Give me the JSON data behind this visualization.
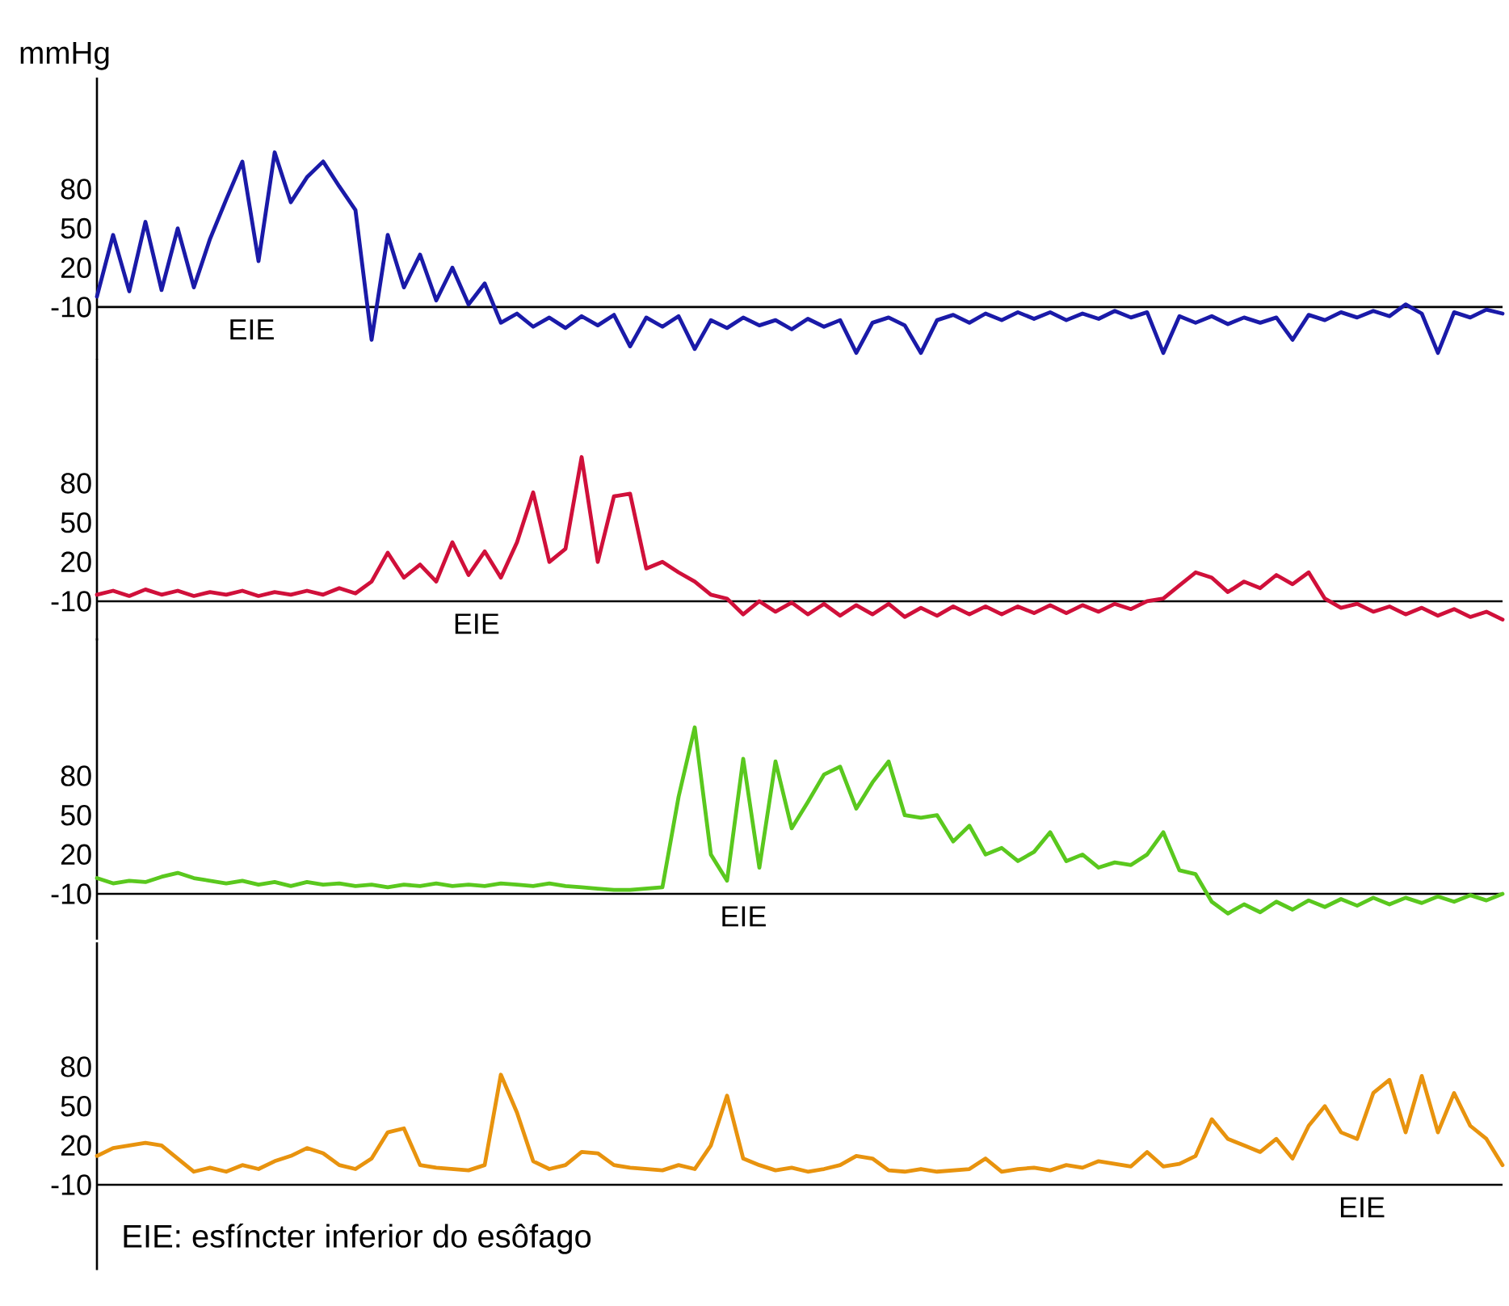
{
  "chart_data": [
    {
      "type": "line",
      "ylabel": "mmHg",
      "color": "#1a1aa8",
      "ylim": [
        -50,
        165
      ],
      "yticks": [
        -10,
        20,
        50,
        80
      ],
      "categories": [
        null,
        null,
        null,
        null,
        null,
        null,
        null,
        null,
        null,
        null,
        null,
        null,
        null,
        null,
        null,
        null,
        null,
        null,
        null,
        null,
        null,
        null,
        null,
        null,
        null,
        null,
        null,
        null,
        null,
        null,
        null,
        null,
        null,
        null,
        null,
        null,
        null,
        null,
        null,
        null,
        null,
        null,
        null,
        null,
        null,
        null,
        null,
        null,
        null,
        null,
        null,
        null,
        null,
        null,
        null,
        null,
        null,
        null,
        null,
        null,
        null,
        null,
        null,
        null,
        null,
        null,
        null,
        null,
        null,
        null,
        null,
        null,
        null,
        null,
        null,
        null,
        null,
        null,
        null,
        null,
        null,
        null,
        null,
        null,
        null,
        null,
        null,
        null
      ],
      "values": [
        -2,
        45,
        2,
        55,
        3,
        50,
        5,
        42,
        72,
        101,
        25,
        108,
        70,
        89,
        101,
        82,
        64,
        -35,
        45,
        5,
        30,
        -5,
        20,
        -8,
        8,
        -22,
        -15,
        -25,
        -18,
        -26,
        -17,
        -24,
        -16,
        -40,
        -18,
        -25,
        -17,
        -42,
        -20,
        -26,
        -18,
        -24,
        -20,
        -27,
        -19,
        -25,
        -20,
        -45,
        -22,
        -18,
        -24,
        -45,
        -20,
        -16,
        -22,
        -15,
        -20,
        -14,
        -19,
        -14,
        -20,
        -15,
        -19,
        -13,
        -18,
        -14,
        -45,
        -17,
        -22,
        -17,
        -23,
        -18,
        -22,
        -18,
        -35,
        -16,
        -20,
        -14,
        -18,
        -13,
        -17,
        -8,
        -15,
        -45,
        -14,
        -18,
        -12,
        -15
      ],
      "ref_lines": [
        {
          "axis": "y",
          "value": -10
        }
      ],
      "annotations": [
        "EIE"
      ]
    },
    {
      "type": "line",
      "color": "#d0103a",
      "ylim": [
        -40,
        175
      ],
      "yticks": [
        -10,
        20,
        50,
        80
      ],
      "categories": [
        null,
        null,
        null,
        null,
        null,
        null,
        null,
        null,
        null,
        null,
        null,
        null,
        null,
        null,
        null,
        null,
        null,
        null,
        null,
        null,
        null,
        null,
        null,
        null,
        null,
        null,
        null,
        null,
        null,
        null,
        null,
        null,
        null,
        null,
        null,
        null,
        null,
        null,
        null,
        null,
        null,
        null,
        null,
        null,
        null,
        null,
        null,
        null,
        null,
        null,
        null,
        null,
        null,
        null,
        null,
        null,
        null,
        null,
        null,
        null,
        null,
        null,
        null,
        null,
        null,
        null,
        null,
        null,
        null,
        null,
        null,
        null,
        null,
        null,
        null,
        null,
        null,
        null,
        null,
        null,
        null,
        null,
        null,
        null,
        null,
        null,
        null,
        null
      ],
      "values": [
        -5,
        -2,
        -6,
        -1,
        -5,
        -2,
        -6,
        -3,
        -5,
        -2,
        -6,
        -3,
        -5,
        -2,
        -5,
        0,
        -4,
        5,
        27,
        8,
        18,
        5,
        35,
        10,
        28,
        8,
        35,
        73,
        20,
        30,
        100,
        20,
        70,
        72,
        15,
        20,
        12,
        5,
        -5,
        -8,
        -20,
        -10,
        -18,
        -11,
        -20,
        -12,
        -21,
        -13,
        -20,
        -12,
        -22,
        -15,
        -21,
        -14,
        -20,
        -14,
        -20,
        -14,
        -19,
        -13,
        -19,
        -13,
        -18,
        -12,
        -16,
        -10,
        -8,
        2,
        12,
        8,
        -3,
        5,
        0,
        10,
        3,
        12,
        -8,
        -15,
        -12,
        -18,
        -14,
        -20,
        -15,
        -21,
        -16,
        -22,
        -18,
        -24
      ],
      "ref_lines": [
        {
          "axis": "y",
          "value": -10
        }
      ],
      "annotations": [
        "EIE"
      ]
    },
    {
      "type": "line",
      "color": "#5ac81e",
      "ylim": [
        -45,
        185
      ],
      "yticks": [
        -10,
        20,
        50,
        80
      ],
      "categories": [
        null,
        null,
        null,
        null,
        null,
        null,
        null,
        null,
        null,
        null,
        null,
        null,
        null,
        null,
        null,
        null,
        null,
        null,
        null,
        null,
        null,
        null,
        null,
        null,
        null,
        null,
        null,
        null,
        null,
        null,
        null,
        null,
        null,
        null,
        null,
        null,
        null,
        null,
        null,
        null,
        null,
        null,
        null,
        null,
        null,
        null,
        null,
        null,
        null,
        null,
        null,
        null,
        null,
        null,
        null,
        null,
        null,
        null,
        null,
        null,
        null,
        null,
        null,
        null,
        null,
        null,
        null,
        null,
        null,
        null,
        null,
        null,
        null,
        null,
        null,
        null,
        null,
        null,
        null,
        null,
        null,
        null,
        null,
        null,
        null,
        null,
        null,
        null
      ],
      "values": [
        2,
        -2,
        0,
        -1,
        3,
        6,
        2,
        0,
        -2,
        0,
        -3,
        -1,
        -4,
        -1,
        -3,
        -2,
        -4,
        -3,
        -5,
        -3,
        -4,
        -2,
        -4,
        -3,
        -4,
        -2,
        -3,
        -4,
        -2,
        -4,
        -5,
        -6,
        -7,
        -7,
        -6,
        -5,
        64,
        117,
        20,
        0,
        93,
        10,
        91,
        40,
        60,
        81,
        87,
        55,
        75,
        91,
        50,
        48,
        50,
        30,
        42,
        20,
        25,
        15,
        22,
        37,
        15,
        20,
        10,
        14,
        12,
        20,
        37,
        8,
        5,
        -16,
        -25,
        -18,
        -24,
        -16,
        -22,
        -15,
        -20,
        -14,
        -19,
        -13,
        -18,
        -13,
        -17,
        -12,
        -16,
        -11,
        -15,
        -10
      ],
      "ref_lines": [
        {
          "axis": "y",
          "value": -10
        }
      ],
      "annotations": [
        "EIE"
      ]
    },
    {
      "type": "line",
      "color": "#e8930e",
      "ylim": [
        -75,
        175
      ],
      "yticks": [
        -10,
        20,
        50,
        80
      ],
      "categories": [
        null,
        null,
        null,
        null,
        null,
        null,
        null,
        null,
        null,
        null,
        null,
        null,
        null,
        null,
        null,
        null,
        null,
        null,
        null,
        null,
        null,
        null,
        null,
        null,
        null,
        null,
        null,
        null,
        null,
        null,
        null,
        null,
        null,
        null,
        null,
        null,
        null,
        null,
        null,
        null,
        null,
        null,
        null,
        null,
        null,
        null,
        null,
        null,
        null,
        null,
        null,
        null,
        null,
        null,
        null,
        null,
        null,
        null,
        null,
        null,
        null,
        null,
        null,
        null,
        null,
        null,
        null,
        null,
        null,
        null,
        null,
        null,
        null,
        null,
        null,
        null,
        null,
        null,
        null,
        null,
        null,
        null,
        null,
        null,
        null,
        null,
        null,
        null
      ],
      "values": [
        12,
        18,
        20,
        22,
        20,
        10,
        0,
        3,
        0,
        5,
        2,
        8,
        12,
        18,
        14,
        5,
        2,
        10,
        30,
        33,
        5,
        3,
        2,
        1,
        5,
        74,
        45,
        8,
        2,
        5,
        15,
        14,
        5,
        3,
        2,
        1,
        5,
        2,
        20,
        58,
        10,
        5,
        1,
        3,
        0,
        2,
        5,
        12,
        10,
        1,
        0,
        2,
        0,
        1,
        2,
        10,
        0,
        2,
        3,
        1,
        5,
        3,
        8,
        6,
        4,
        15,
        4,
        6,
        12,
        40,
        25,
        20,
        15,
        25,
        10,
        35,
        50,
        30,
        25,
        60,
        70,
        30,
        73,
        30,
        60,
        35,
        25,
        5
      ],
      "ref_lines": [
        {
          "axis": "y",
          "value": -10
        }
      ],
      "annotations": [
        "EIE",
        "EIE: esfíncter inferior do esôfago"
      ]
    }
  ]
}
